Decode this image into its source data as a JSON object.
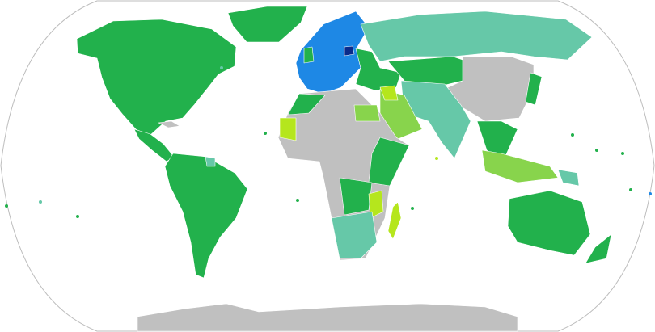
{
  "map": {
    "projection": "Robinson",
    "colors": {
      "green": "#22b14c",
      "teal": "#66c8a8",
      "blue": "#1e88e5",
      "dark_blue": "#0a2a8a",
      "yellow_green": "#b5e61d",
      "light_green": "#88d44c",
      "gray": "#c0c0c0"
    }
  }
}
